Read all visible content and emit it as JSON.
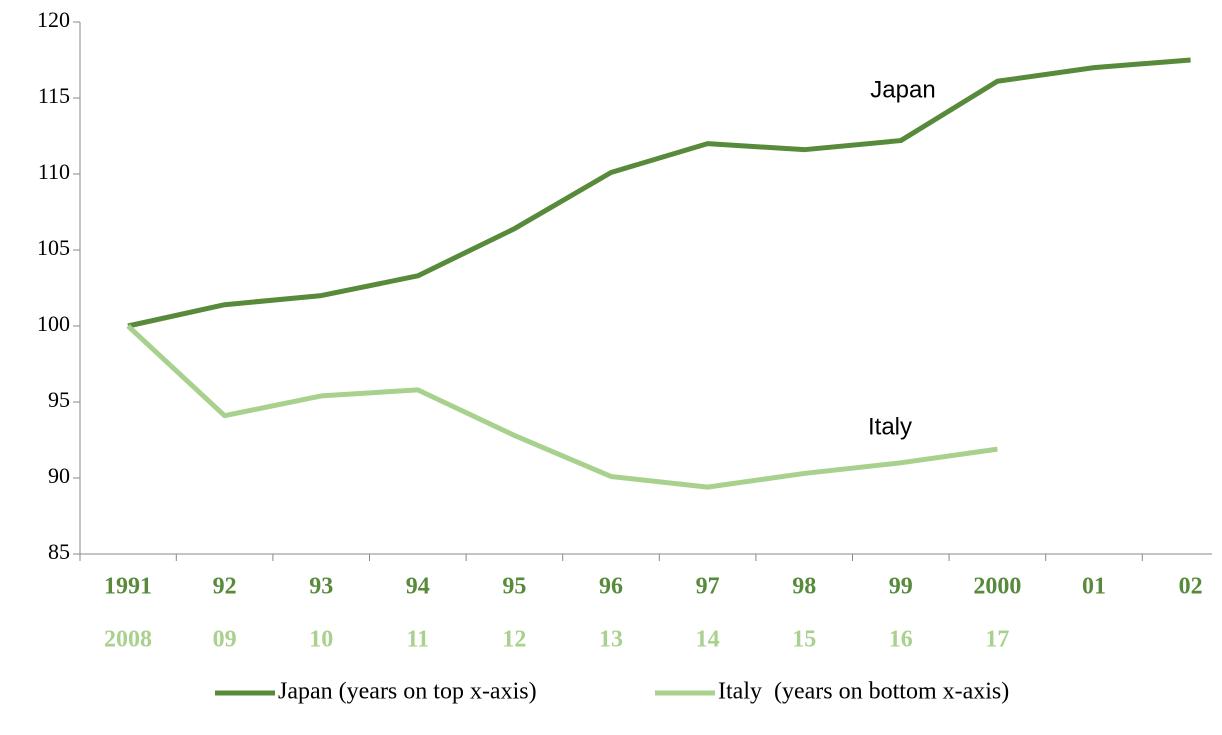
{
  "chart_data": {
    "type": "line",
    "categories": [
      "1991",
      "92",
      "93",
      "94",
      "95",
      "96",
      "97",
      "98",
      "99",
      "2000",
      "01",
      "02"
    ],
    "categories2": [
      "2008",
      "09",
      "10",
      "11",
      "12",
      "13",
      "14",
      "15",
      "16",
      "17",
      null,
      null
    ],
    "series": [
      {
        "name": "Japan (years on top x-axis)",
        "color": "#578a3a",
        "values": [
          100,
          101.4,
          102,
          103.3,
          106.4,
          110.1,
          112,
          111.6,
          112.2,
          116.1,
          117,
          117.5
        ]
      },
      {
        "name": "Italy  (years on bottom x-axis)",
        "color": "#a9d18e",
        "values": [
          100,
          94.1,
          95.4,
          95.8,
          92.8,
          90.1,
          89.4,
          90.3,
          91,
          91.9,
          null,
          null
        ]
      }
    ],
    "annotations": [
      "Japan",
      "Italy"
    ],
    "ylim": [
      85,
      120
    ],
    "yticks": [
      85,
      90,
      95,
      100,
      105,
      110,
      115,
      120
    ]
  }
}
